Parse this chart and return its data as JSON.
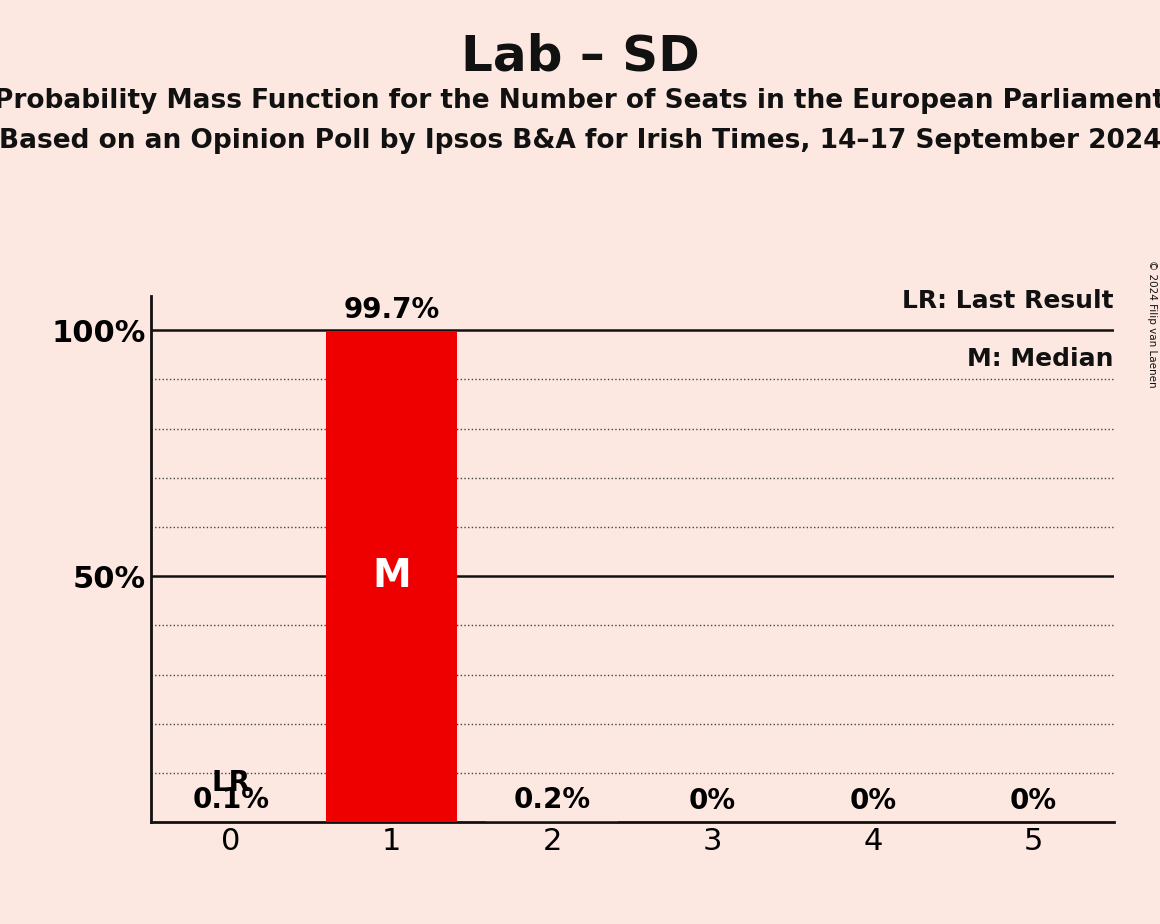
{
  "title": "Lab – SD",
  "subtitle1": "Probability Mass Function for the Number of Seats in the European Parliament",
  "subtitle2": "Based on an Opinion Poll by Ipsos B&A for Irish Times, 14–17 September 2024",
  "copyright": "© 2024 Filip van Laenen",
  "categories": [
    0,
    1,
    2,
    3,
    4,
    5
  ],
  "values": [
    0.1,
    99.7,
    0.2,
    0.0,
    0.0,
    0.0
  ],
  "bar_color": "#ee0000",
  "bar_labels": [
    "0.1%",
    "99.7%",
    "0.2%",
    "0%",
    "0%",
    "0%"
  ],
  "median_bar": 1,
  "last_result_bar": 0,
  "legend_lr": "LR: Last Result",
  "legend_m": "M: Median",
  "median_label": "M",
  "lr_label": "LR",
  "background_color": "#fce8e0",
  "title_fontsize": 36,
  "subtitle_fontsize": 19,
  "bar_label_fontsize": 20,
  "tick_fontsize": 22,
  "legend_fontsize": 18,
  "median_fontsize": 28,
  "lr_fontsize": 20,
  "ylabel_100": "100%",
  "ylabel_50": "50%",
  "ylim_max": 107,
  "xlim": [
    -0.5,
    5.5
  ],
  "grid_minor_step": 10,
  "bar_width": 0.82
}
